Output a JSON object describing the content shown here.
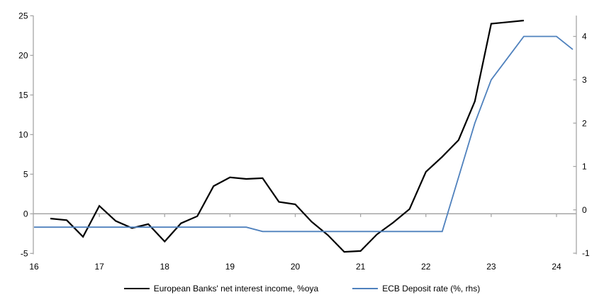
{
  "chart_data": {
    "type": "line",
    "title": "",
    "grid": "zero-line-only",
    "legend_position": "bottom",
    "axis_color": "#a6a6a6",
    "zero_line_color": "#a6a6a6",
    "x_axis": {
      "range": [
        16,
        24.3
      ],
      "tick_values": [
        16,
        17,
        18,
        19,
        20,
        21,
        22,
        23,
        24
      ],
      "labels": [
        "16",
        "17",
        "18",
        "19",
        "20",
        "21",
        "22",
        "23",
        "24"
      ]
    },
    "left_axis": {
      "range": [
        -5,
        25
      ],
      "tick_values": [
        25,
        20,
        15,
        10,
        5,
        0,
        -5
      ],
      "labels": [
        "25",
        "20",
        "15",
        "10",
        "5",
        "0",
        "-5"
      ]
    },
    "right_axis": {
      "range": [
        -1,
        4.5
      ],
      "tick_values": [
        4,
        3,
        2,
        1,
        0,
        -1
      ],
      "labels": [
        "4",
        "3",
        "2",
        "1",
        "0",
        "-1"
      ]
    },
    "series": [
      {
        "name": "European Banks' net interest income, %oya",
        "axis": "left",
        "color": "#000000",
        "stroke_width": 2.2,
        "x": [
          16.25,
          16.5,
          16.75,
          17,
          17.25,
          17.5,
          17.75,
          18,
          18.25,
          18.5,
          18.75,
          19,
          19.25,
          19.5,
          19.75,
          20,
          20.25,
          20.5,
          20.75,
          21,
          21.25,
          21.5,
          21.75,
          22,
          22.25,
          22.5,
          22.75,
          23,
          23.25,
          23.5
        ],
        "values": [
          -0.6,
          -0.8,
          -2.9,
          1.0,
          -0.9,
          -1.8,
          -1.3,
          -3.5,
          -1.2,
          -0.3,
          3.5,
          4.6,
          4.4,
          4.5,
          1.5,
          1.2,
          -1.0,
          -2.7,
          -4.8,
          -4.7,
          -2.6,
          -1.1,
          0.6,
          5.3,
          7.2,
          9.3,
          14.2,
          24.0,
          24.2,
          24.4
        ]
      },
      {
        "name": "ECB Deposit rate (%, rhs)",
        "axis": "right",
        "color": "#4f81bd",
        "stroke_width": 1.8,
        "x": [
          16,
          16.25,
          16.5,
          16.75,
          17,
          17.25,
          17.5,
          17.75,
          18,
          18.25,
          18.5,
          18.75,
          19,
          19.25,
          19.5,
          19.75,
          20,
          20.25,
          20.5,
          20.75,
          21,
          21.25,
          21.5,
          21.75,
          22,
          22.25,
          22.5,
          22.75,
          23,
          23.25,
          23.5,
          23.75,
          24,
          24.25
        ],
        "values": [
          -0.4,
          -0.4,
          -0.4,
          -0.4,
          -0.4,
          -0.4,
          -0.4,
          -0.4,
          -0.4,
          -0.4,
          -0.4,
          -0.4,
          -0.4,
          -0.4,
          -0.5,
          -0.5,
          -0.5,
          -0.5,
          -0.5,
          -0.5,
          -0.5,
          -0.5,
          -0.5,
          -0.5,
          -0.5,
          -0.5,
          0.75,
          2.0,
          3.0,
          3.5,
          4.0,
          4.0,
          4.0,
          3.7
        ]
      }
    ]
  }
}
